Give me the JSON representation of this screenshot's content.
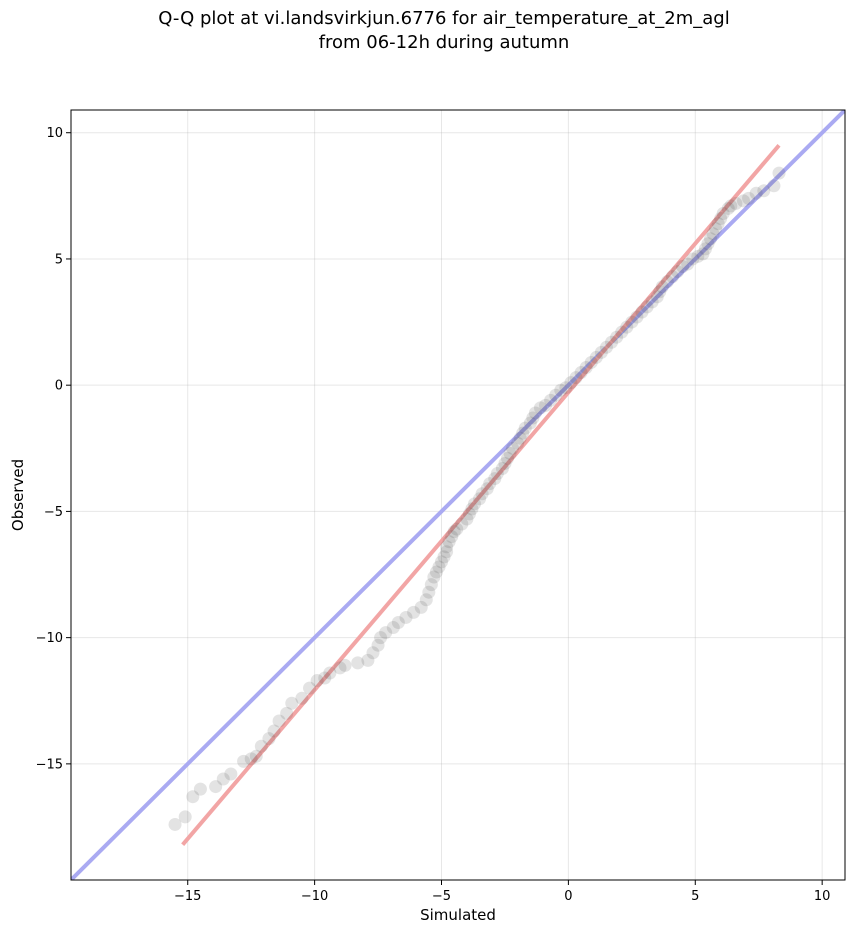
{
  "chart_data": {
    "type": "scatter",
    "title_line1": "Q-Q plot at vi.landsvirkjun.6776 for air_temperature_at_2m_agl",
    "title_line2": "from 06-12h during autumn",
    "xlabel": "Simulated",
    "ylabel": "Observed",
    "xlim": [
      -19.6,
      10.9
    ],
    "ylim": [
      -19.6,
      10.9
    ],
    "x_ticks": [
      -15,
      -10,
      -5,
      0,
      5,
      10
    ],
    "y_ticks": [
      -15,
      -10,
      -5,
      0,
      5,
      10
    ],
    "x_tick_labels": [
      "−15",
      "−10",
      "−5",
      "0",
      "5",
      "10"
    ],
    "y_tick_labels": [
      "−15",
      "−10",
      "−5",
      "0",
      "5",
      "10"
    ],
    "grid": true,
    "reference_line": {
      "slope": 1,
      "intercept": 0,
      "color": "#aaaaf2"
    },
    "fit_line": {
      "x": [
        -15.2,
        8.3
      ],
      "y": [
        -18.2,
        9.5
      ],
      "color": "#f2a5a5"
    },
    "points_color": "#444444",
    "points": [
      [
        -15.5,
        -17.4
      ],
      [
        -15.1,
        -17.1
      ],
      [
        -14.8,
        -16.3
      ],
      [
        -14.5,
        -16.0
      ],
      [
        -13.9,
        -15.9
      ],
      [
        -13.6,
        -15.6
      ],
      [
        -13.3,
        -15.4
      ],
      [
        -12.8,
        -14.9
      ],
      [
        -12.5,
        -14.8
      ],
      [
        -12.3,
        -14.7
      ],
      [
        -12.1,
        -14.3
      ],
      [
        -11.8,
        -14.0
      ],
      [
        -11.6,
        -13.7
      ],
      [
        -11.4,
        -13.3
      ],
      [
        -11.1,
        -13.0
      ],
      [
        -10.9,
        -12.6
      ],
      [
        -10.5,
        -12.4
      ],
      [
        -10.2,
        -12.0
      ],
      [
        -9.9,
        -11.7
      ],
      [
        -9.6,
        -11.6
      ],
      [
        -9.4,
        -11.4
      ],
      [
        -9.0,
        -11.2
      ],
      [
        -8.8,
        -11.1
      ],
      [
        -8.3,
        -11.0
      ],
      [
        -7.9,
        -10.9
      ],
      [
        -7.7,
        -10.6
      ],
      [
        -7.5,
        -10.3
      ],
      [
        -7.4,
        -10.0
      ],
      [
        -7.2,
        -9.8
      ],
      [
        -6.9,
        -9.6
      ],
      [
        -6.7,
        -9.4
      ],
      [
        -6.4,
        -9.2
      ],
      [
        -6.1,
        -9.0
      ],
      [
        -5.8,
        -8.8
      ],
      [
        -5.6,
        -8.5
      ],
      [
        -5.5,
        -8.2
      ],
      [
        -5.4,
        -7.9
      ],
      [
        -5.3,
        -7.6
      ],
      [
        -5.2,
        -7.4
      ],
      [
        -5.1,
        -7.2
      ],
      [
        -5.0,
        -7.0
      ],
      [
        -4.9,
        -6.8
      ],
      [
        -4.8,
        -6.6
      ],
      [
        -4.8,
        -6.4
      ],
      [
        -4.7,
        -6.2
      ],
      [
        -4.6,
        -6.0
      ],
      [
        -4.5,
        -5.8
      ],
      [
        -4.4,
        -5.7
      ],
      [
        -4.2,
        -5.5
      ],
      [
        -4.0,
        -5.3
      ],
      [
        -3.9,
        -5.1
      ],
      [
        -3.8,
        -4.9
      ],
      [
        -3.7,
        -4.7
      ],
      [
        -3.5,
        -4.5
      ],
      [
        -3.4,
        -4.3
      ],
      [
        -3.2,
        -4.1
      ],
      [
        -3.1,
        -3.9
      ],
      [
        -2.9,
        -3.7
      ],
      [
        -2.8,
        -3.5
      ],
      [
        -2.6,
        -3.3
      ],
      [
        -2.5,
        -3.1
      ],
      [
        -2.4,
        -2.9
      ],
      [
        -2.3,
        -2.7
      ],
      [
        -2.2,
        -2.5
      ],
      [
        -2.0,
        -2.3
      ],
      [
        -1.9,
        -2.1
      ],
      [
        -1.8,
        -1.9
      ],
      [
        -1.7,
        -1.7
      ],
      [
        -1.5,
        -1.5
      ],
      [
        -1.4,
        -1.3
      ],
      [
        -1.3,
        -1.1
      ],
      [
        -1.1,
        -0.9
      ],
      [
        -0.9,
        -0.8
      ],
      [
        -0.7,
        -0.6
      ],
      [
        -0.5,
        -0.4
      ],
      [
        -0.3,
        -0.2
      ],
      [
        -0.1,
        -0.1
      ],
      [
        0.1,
        0.1
      ],
      [
        0.3,
        0.3
      ],
      [
        0.5,
        0.5
      ],
      [
        0.7,
        0.7
      ],
      [
        0.9,
        0.9
      ],
      [
        1.1,
        1.1
      ],
      [
        1.3,
        1.3
      ],
      [
        1.5,
        1.5
      ],
      [
        1.7,
        1.7
      ],
      [
        1.9,
        1.9
      ],
      [
        2.1,
        2.1
      ],
      [
        2.3,
        2.3
      ],
      [
        2.5,
        2.5
      ],
      [
        2.7,
        2.7
      ],
      [
        2.9,
        2.9
      ],
      [
        3.1,
        3.1
      ],
      [
        3.3,
        3.3
      ],
      [
        3.5,
        3.5
      ],
      [
        3.6,
        3.7
      ],
      [
        3.7,
        3.9
      ],
      [
        3.9,
        4.1
      ],
      [
        4.1,
        4.3
      ],
      [
        4.3,
        4.5
      ],
      [
        4.5,
        4.7
      ],
      [
        4.7,
        4.8
      ],
      [
        4.9,
        5.0
      ],
      [
        5.1,
        5.1
      ],
      [
        5.3,
        5.2
      ],
      [
        5.4,
        5.4
      ],
      [
        5.5,
        5.6
      ],
      [
        5.6,
        5.8
      ],
      [
        5.7,
        6.0
      ],
      [
        5.8,
        6.2
      ],
      [
        5.9,
        6.4
      ],
      [
        6.0,
        6.6
      ],
      [
        6.1,
        6.8
      ],
      [
        6.3,
        7.0
      ],
      [
        6.4,
        7.1
      ],
      [
        6.6,
        7.2
      ],
      [
        6.9,
        7.3
      ],
      [
        7.1,
        7.4
      ],
      [
        7.4,
        7.6
      ],
      [
        7.7,
        7.7
      ],
      [
        8.1,
        7.9
      ],
      [
        8.3,
        8.4
      ]
    ]
  }
}
